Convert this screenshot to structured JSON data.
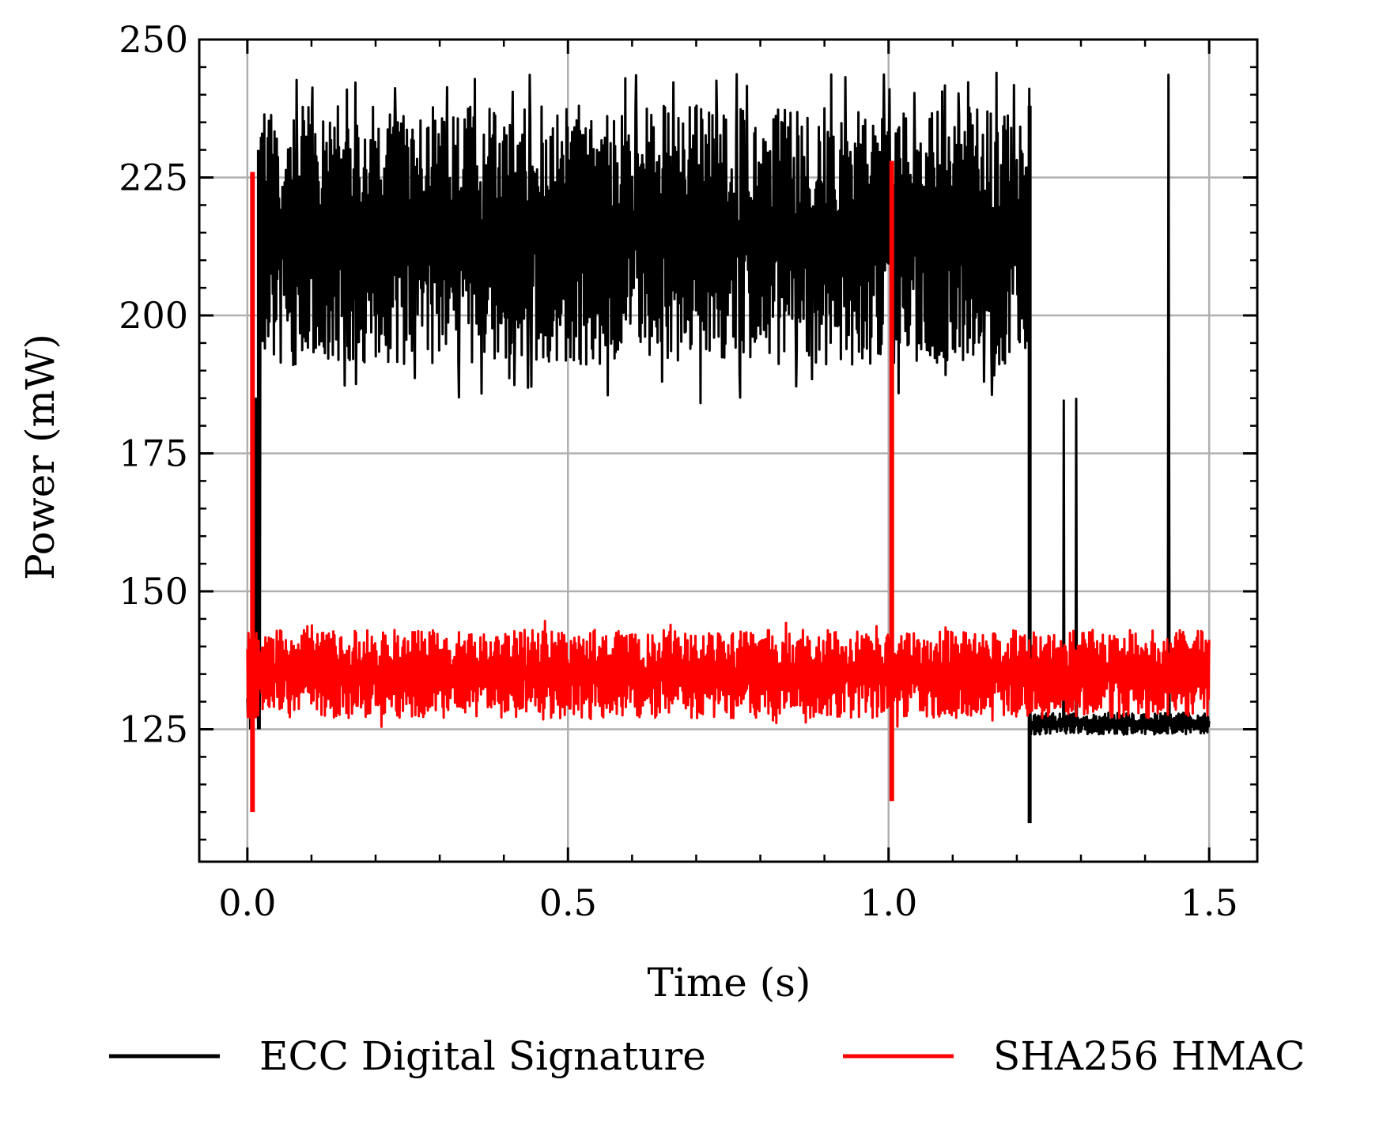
{
  "chart_data": {
    "type": "line",
    "xlabel": "Time (s)",
    "ylabel": "Power (mW)",
    "xlim": [
      -0.075,
      1.575
    ],
    "ylim": [
      101,
      250
    ],
    "xticks": [
      0.0,
      0.5,
      1.0,
      1.5
    ],
    "xtick_labels": [
      "0.0",
      "0.5",
      "1.0",
      "1.5"
    ],
    "yticks": [
      125,
      150,
      175,
      200,
      225,
      250
    ],
    "ytick_labels": [
      "125",
      "150",
      "175",
      "200",
      "225",
      "250"
    ],
    "grid": true,
    "legend_position": "bottom",
    "series": [
      {
        "name": "ECC Digital Signature",
        "color": "#000000",
        "segments": [
          {
            "t_start": 0.0,
            "t_end": 0.02,
            "level": 130,
            "band_low": 125,
            "band_high": 135
          },
          {
            "t_start": 0.02,
            "t_end": 1.22,
            "level": 215,
            "band_low": 191,
            "band_high": 238
          },
          {
            "t_start": 1.22,
            "t_end": 1.5,
            "level": 126,
            "band_low": 124,
            "band_high": 128
          }
        ],
        "spike_max": 244,
        "dip_min": 184,
        "drop_min_at_end": 108
      },
      {
        "name": "SHA256 HMAC",
        "color": "#ff0000",
        "segments": [
          {
            "t_start": 0.0,
            "t_end": 1.5,
            "level": 135,
            "band_low": 127,
            "band_high": 143
          }
        ],
        "spike_max": 145,
        "dip_min": 125,
        "transients": [
          {
            "t": 0.008,
            "max": 226,
            "min": 110
          },
          {
            "t": 1.005,
            "max": 228,
            "min": 112
          }
        ]
      }
    ]
  }
}
